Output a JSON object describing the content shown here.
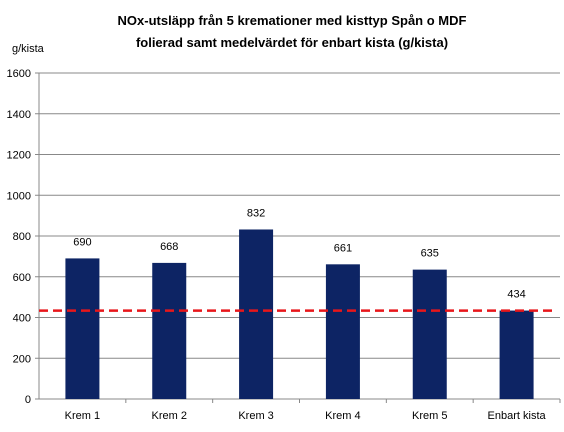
{
  "chart_data": {
    "type": "bar",
    "title_lines": [
      "NOx-utsläpp från 5 kremationer med kisttyp Spån o MDF",
      "folierad samt medelvärdet för enbart kista (g/kista)"
    ],
    "ylabel": "g/kista",
    "xlabel": "",
    "categories": [
      "Krem 1",
      "Krem 2",
      "Krem 3",
      "Krem 4",
      "Krem 5",
      "Enbart kista"
    ],
    "values": [
      690,
      668,
      832,
      661,
      635,
      434
    ],
    "data_labels": [
      "690",
      "668",
      "832",
      "661",
      "635",
      "434"
    ],
    "reference_line": {
      "value": 434,
      "style": "dashed",
      "color": "#e8161a"
    },
    "ylim": [
      0,
      1600
    ],
    "yticks": [
      0,
      200,
      400,
      600,
      800,
      1000,
      1200,
      1400,
      1600
    ],
    "ytick_labels": [
      "0",
      "200",
      "400",
      "600",
      "800",
      "1000",
      "1200",
      "1400",
      "1600"
    ],
    "grid": true,
    "bar_color": "#0d2464",
    "grid_color": "#888888"
  }
}
